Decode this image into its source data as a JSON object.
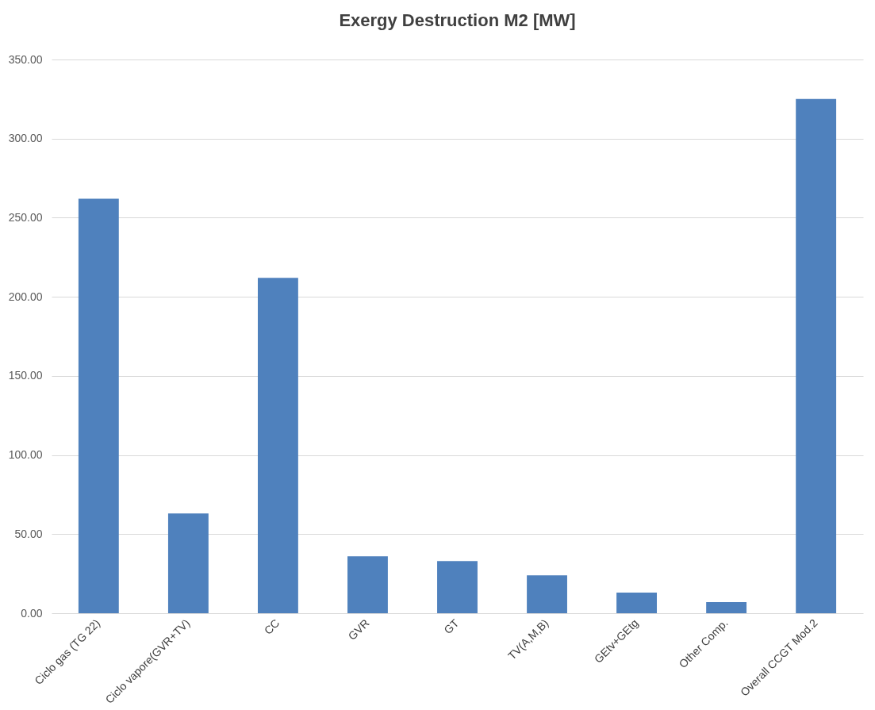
{
  "chart_data": {
    "type": "bar",
    "title": "Exergy Destruction M2 [MW]",
    "categories": [
      "Ciclo gas (TG 22)",
      "Ciclo vapore(GVR+TV)",
      "CC",
      "GVR",
      "GT",
      "TV(A,M,B)",
      "GEtv+GEtg",
      "Other Comp.",
      "Overall CCGT Mod.2"
    ],
    "values": [
      262,
      63,
      212,
      36,
      33,
      24,
      13,
      7,
      325
    ],
    "color": "#4f81bd",
    "ylim": [
      0,
      350
    ],
    "yticks": [
      {
        "value": 0,
        "label": "0.00"
      },
      {
        "value": 50,
        "label": "50.00"
      },
      {
        "value": 100,
        "label": "100.00"
      },
      {
        "value": 150,
        "label": "150.00"
      },
      {
        "value": 200,
        "label": "200.00"
      },
      {
        "value": 250,
        "label": "250.00"
      },
      {
        "value": 300,
        "label": "300.00"
      },
      {
        "value": 350,
        "label": "350.00"
      }
    ],
    "grid": "y"
  }
}
